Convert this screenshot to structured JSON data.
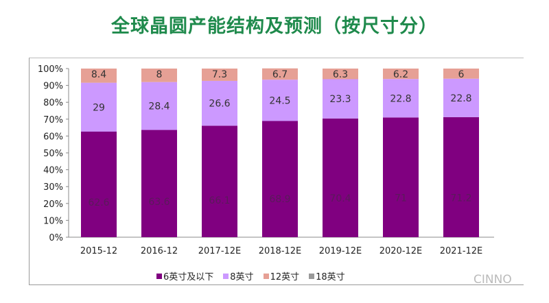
{
  "title": "全球晶圆产能结构及预测（按尺寸分）",
  "watermark": "CINNO",
  "chart_data": {
    "type": "bar",
    "stacked": true,
    "title": "全球晶圆产能结构及预测（按尺寸分）",
    "categories": [
      "2015-12",
      "2016-12",
      "2017-12E",
      "2018-12E",
      "2019-12E",
      "2020-12E",
      "2021-12E"
    ],
    "series": [
      {
        "name": "6英寸及以下",
        "color": "#800080",
        "values": [
          62.6,
          63.6,
          66.1,
          68.9,
          70.4,
          71,
          71.2
        ]
      },
      {
        "name": "8英寸",
        "color": "#cc99ff",
        "values": [
          29,
          28.4,
          26.6,
          24.5,
          23.3,
          22.8,
          22.8
        ]
      },
      {
        "name": "12英寸",
        "color": "#e6a095",
        "values": [
          8.4,
          8,
          7.3,
          6.7,
          6.3,
          6.2,
          6
        ]
      },
      {
        "name": "18英寸",
        "color": "#999999",
        "values": [
          0,
          0,
          0,
          0,
          0,
          0,
          0
        ]
      }
    ],
    "yticks": [
      "0%",
      "10%",
      "20%",
      "30%",
      "40%",
      "50%",
      "60%",
      "70%",
      "80%",
      "90%",
      "100%"
    ],
    "ylim": [
      0,
      100
    ],
    "legend": "bottom"
  }
}
